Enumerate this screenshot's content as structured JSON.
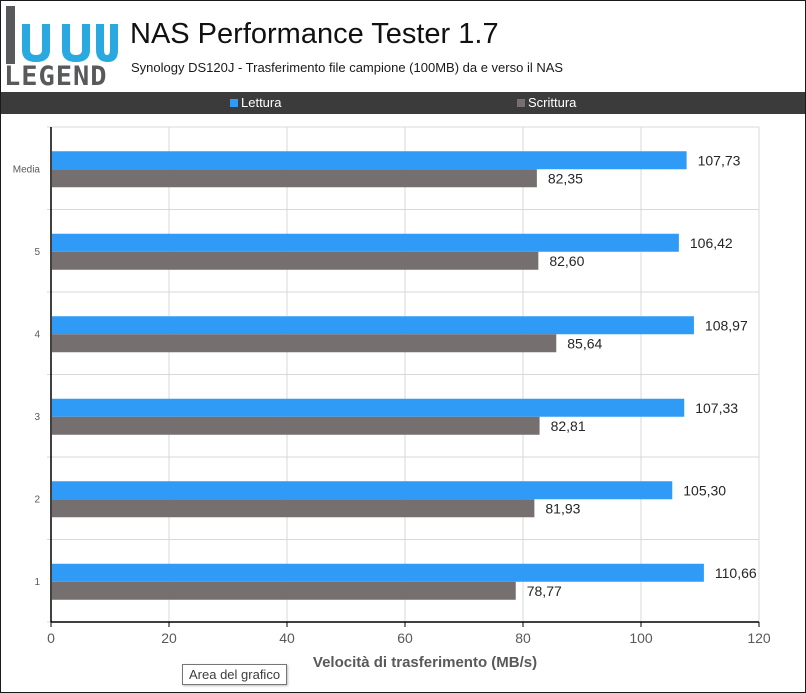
{
  "logo": {
    "word": "LEGEND"
  },
  "header": {
    "title": "NAS Performance Tester 1.7",
    "subtitle": "Synology DS120J - Trasferimento file campione (100MB) da e verso il NAS"
  },
  "colors": {
    "read": "#2f9bf6",
    "write": "#756f6f",
    "legend_band": "#3b3b3b",
    "grid": "#d9d9d9"
  },
  "chart_data": {
    "type": "bar",
    "orientation": "horizontal",
    "categories": [
      "1",
      "2",
      "3",
      "4",
      "5",
      "Media"
    ],
    "series": [
      {
        "name": "Lettura",
        "values": [
          110.66,
          105.3,
          107.33,
          108.97,
          106.42,
          107.73
        ],
        "labels": [
          "110,66",
          "105,30",
          "107,33",
          "108,97",
          "106,42",
          "107,73"
        ]
      },
      {
        "name": "Scrittura",
        "values": [
          78.77,
          81.93,
          82.81,
          85.64,
          82.6,
          82.35
        ],
        "labels": [
          "78,77",
          "81,93",
          "82,81",
          "85,64",
          "82,60",
          "82,35"
        ]
      }
    ],
    "xlabel": "Velocità di trasferimento (MB/s)",
    "xlim": [
      0,
      120
    ],
    "xticks": [
      0,
      20,
      40,
      60,
      80,
      100,
      120
    ],
    "grid": true,
    "legend_position": "top"
  },
  "tooltip": {
    "text": "Area del grafico"
  }
}
